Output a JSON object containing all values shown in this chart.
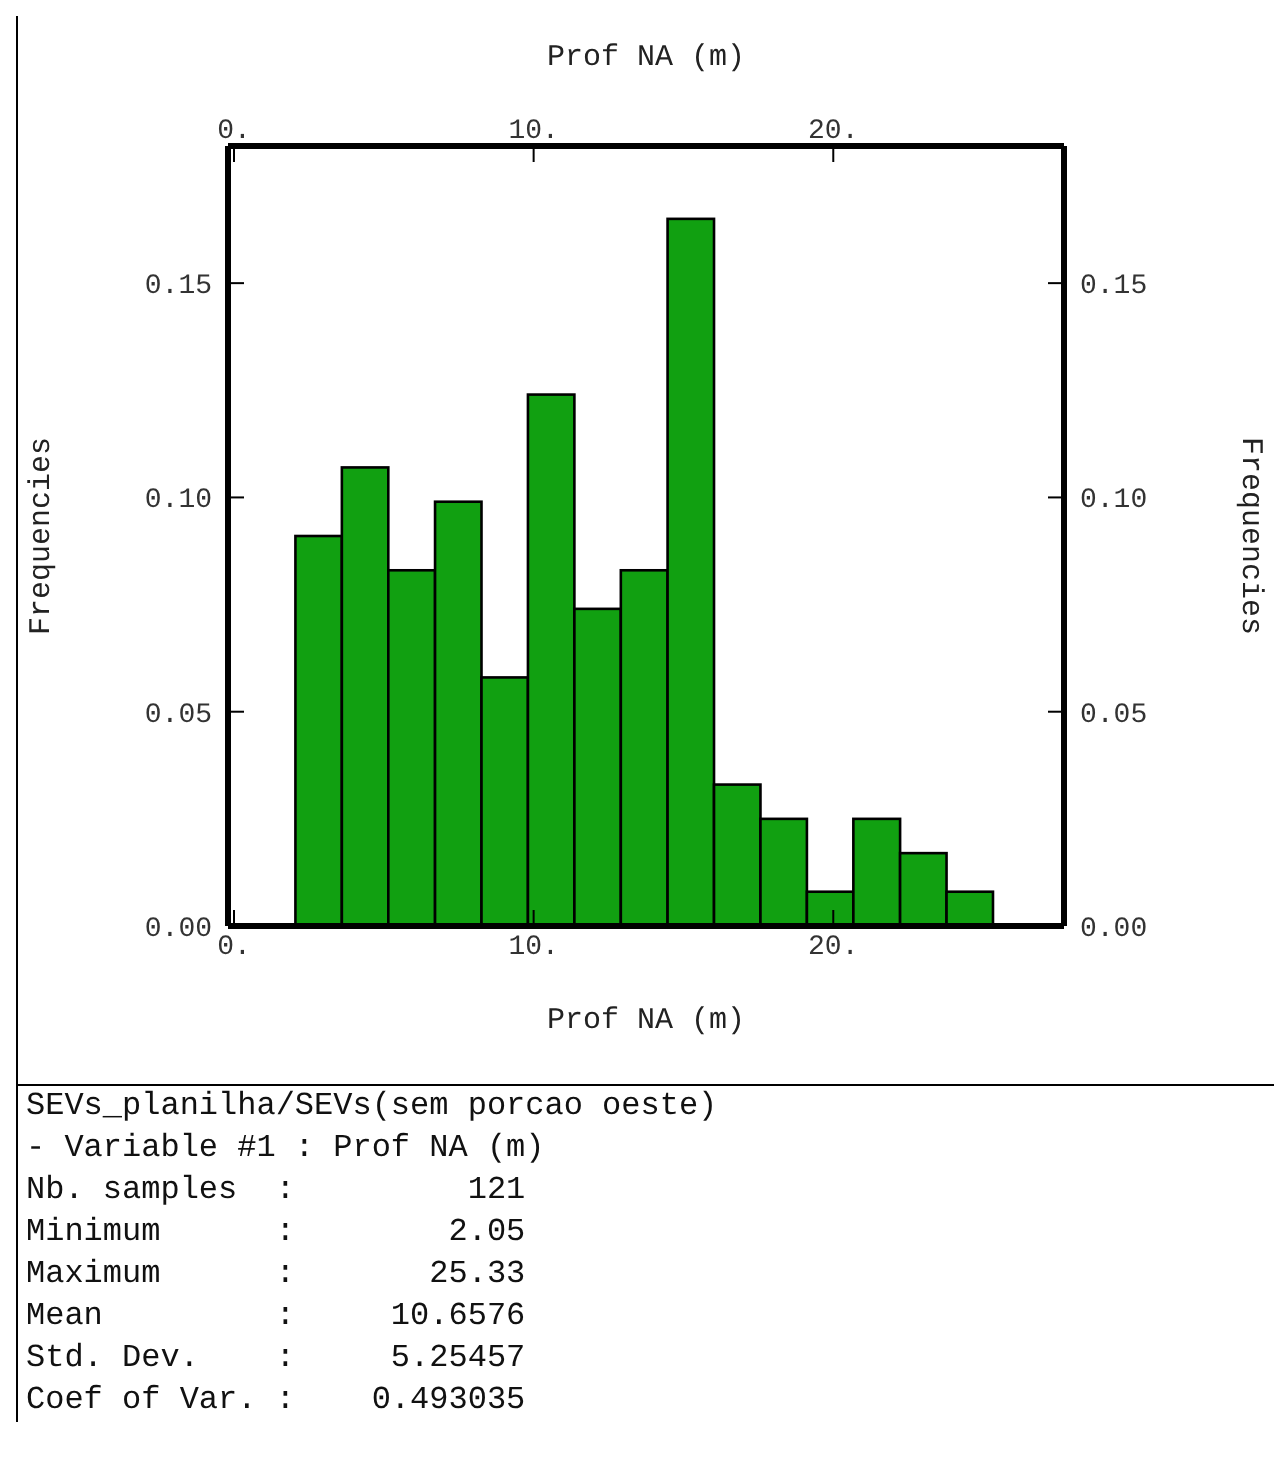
{
  "chart_data": {
    "type": "histogram",
    "bins": [
      2.05,
      3.6,
      5.15,
      6.71,
      8.26,
      9.81,
      11.36,
      12.91,
      14.47,
      16.02,
      17.57,
      19.12,
      20.67,
      22.23,
      23.78,
      25.33
    ],
    "values": [
      0.091,
      0.107,
      0.083,
      0.099,
      0.058,
      0.124,
      0.074,
      0.083,
      0.165,
      0.033,
      0.025,
      0.008,
      0.025,
      0.017,
      0.008
    ],
    "color": "#11a011",
    "xlabel": "Prof NA (m)",
    "x2label": "Prof NA (m)",
    "ylabel": "Frequencies",
    "y2label": "Frequencies",
    "xlim": [
      -0.2,
      27.7
    ],
    "xticks": [
      {
        "value": 0,
        "label": "0."
      },
      {
        "value": 10,
        "label": "10."
      },
      {
        "value": 20,
        "label": "20."
      }
    ],
    "x2lim": [
      -0.2,
      27.7
    ],
    "x2ticks": [
      {
        "value": 0,
        "label": "0."
      },
      {
        "value": 10,
        "label": "10."
      },
      {
        "value": 20,
        "label": "20."
      }
    ],
    "ylim": [
      0,
      0.182
    ],
    "yticks": [
      {
        "value": 0,
        "label": "0.00"
      },
      {
        "value": 0.05,
        "label": "0.05"
      },
      {
        "value": 0.1,
        "label": "0.10"
      },
      {
        "value": 0.15,
        "label": "0.15"
      }
    ],
    "y2lim": [
      0,
      0.182
    ],
    "y2ticks": [
      {
        "value": 0,
        "label": "0.00"
      },
      {
        "value": 0.05,
        "label": "0.05"
      },
      {
        "value": 0.1,
        "label": "0.10"
      },
      {
        "value": 0.15,
        "label": "0.15"
      }
    ],
    "grid": false,
    "legend": false,
    "annotations": [
      "SEVs_planilha/SEVs(sem porcao oeste)",
      "- Variable #1 : Prof NA (m)",
      "Nb. samples  :         121",
      "Minimum      :        2.05",
      "Maximum      :       25.33",
      "Mean         :     10.6576",
      "Std. Dev.    :     5.25457",
      "Coef of Var. :    0.493035"
    ]
  }
}
